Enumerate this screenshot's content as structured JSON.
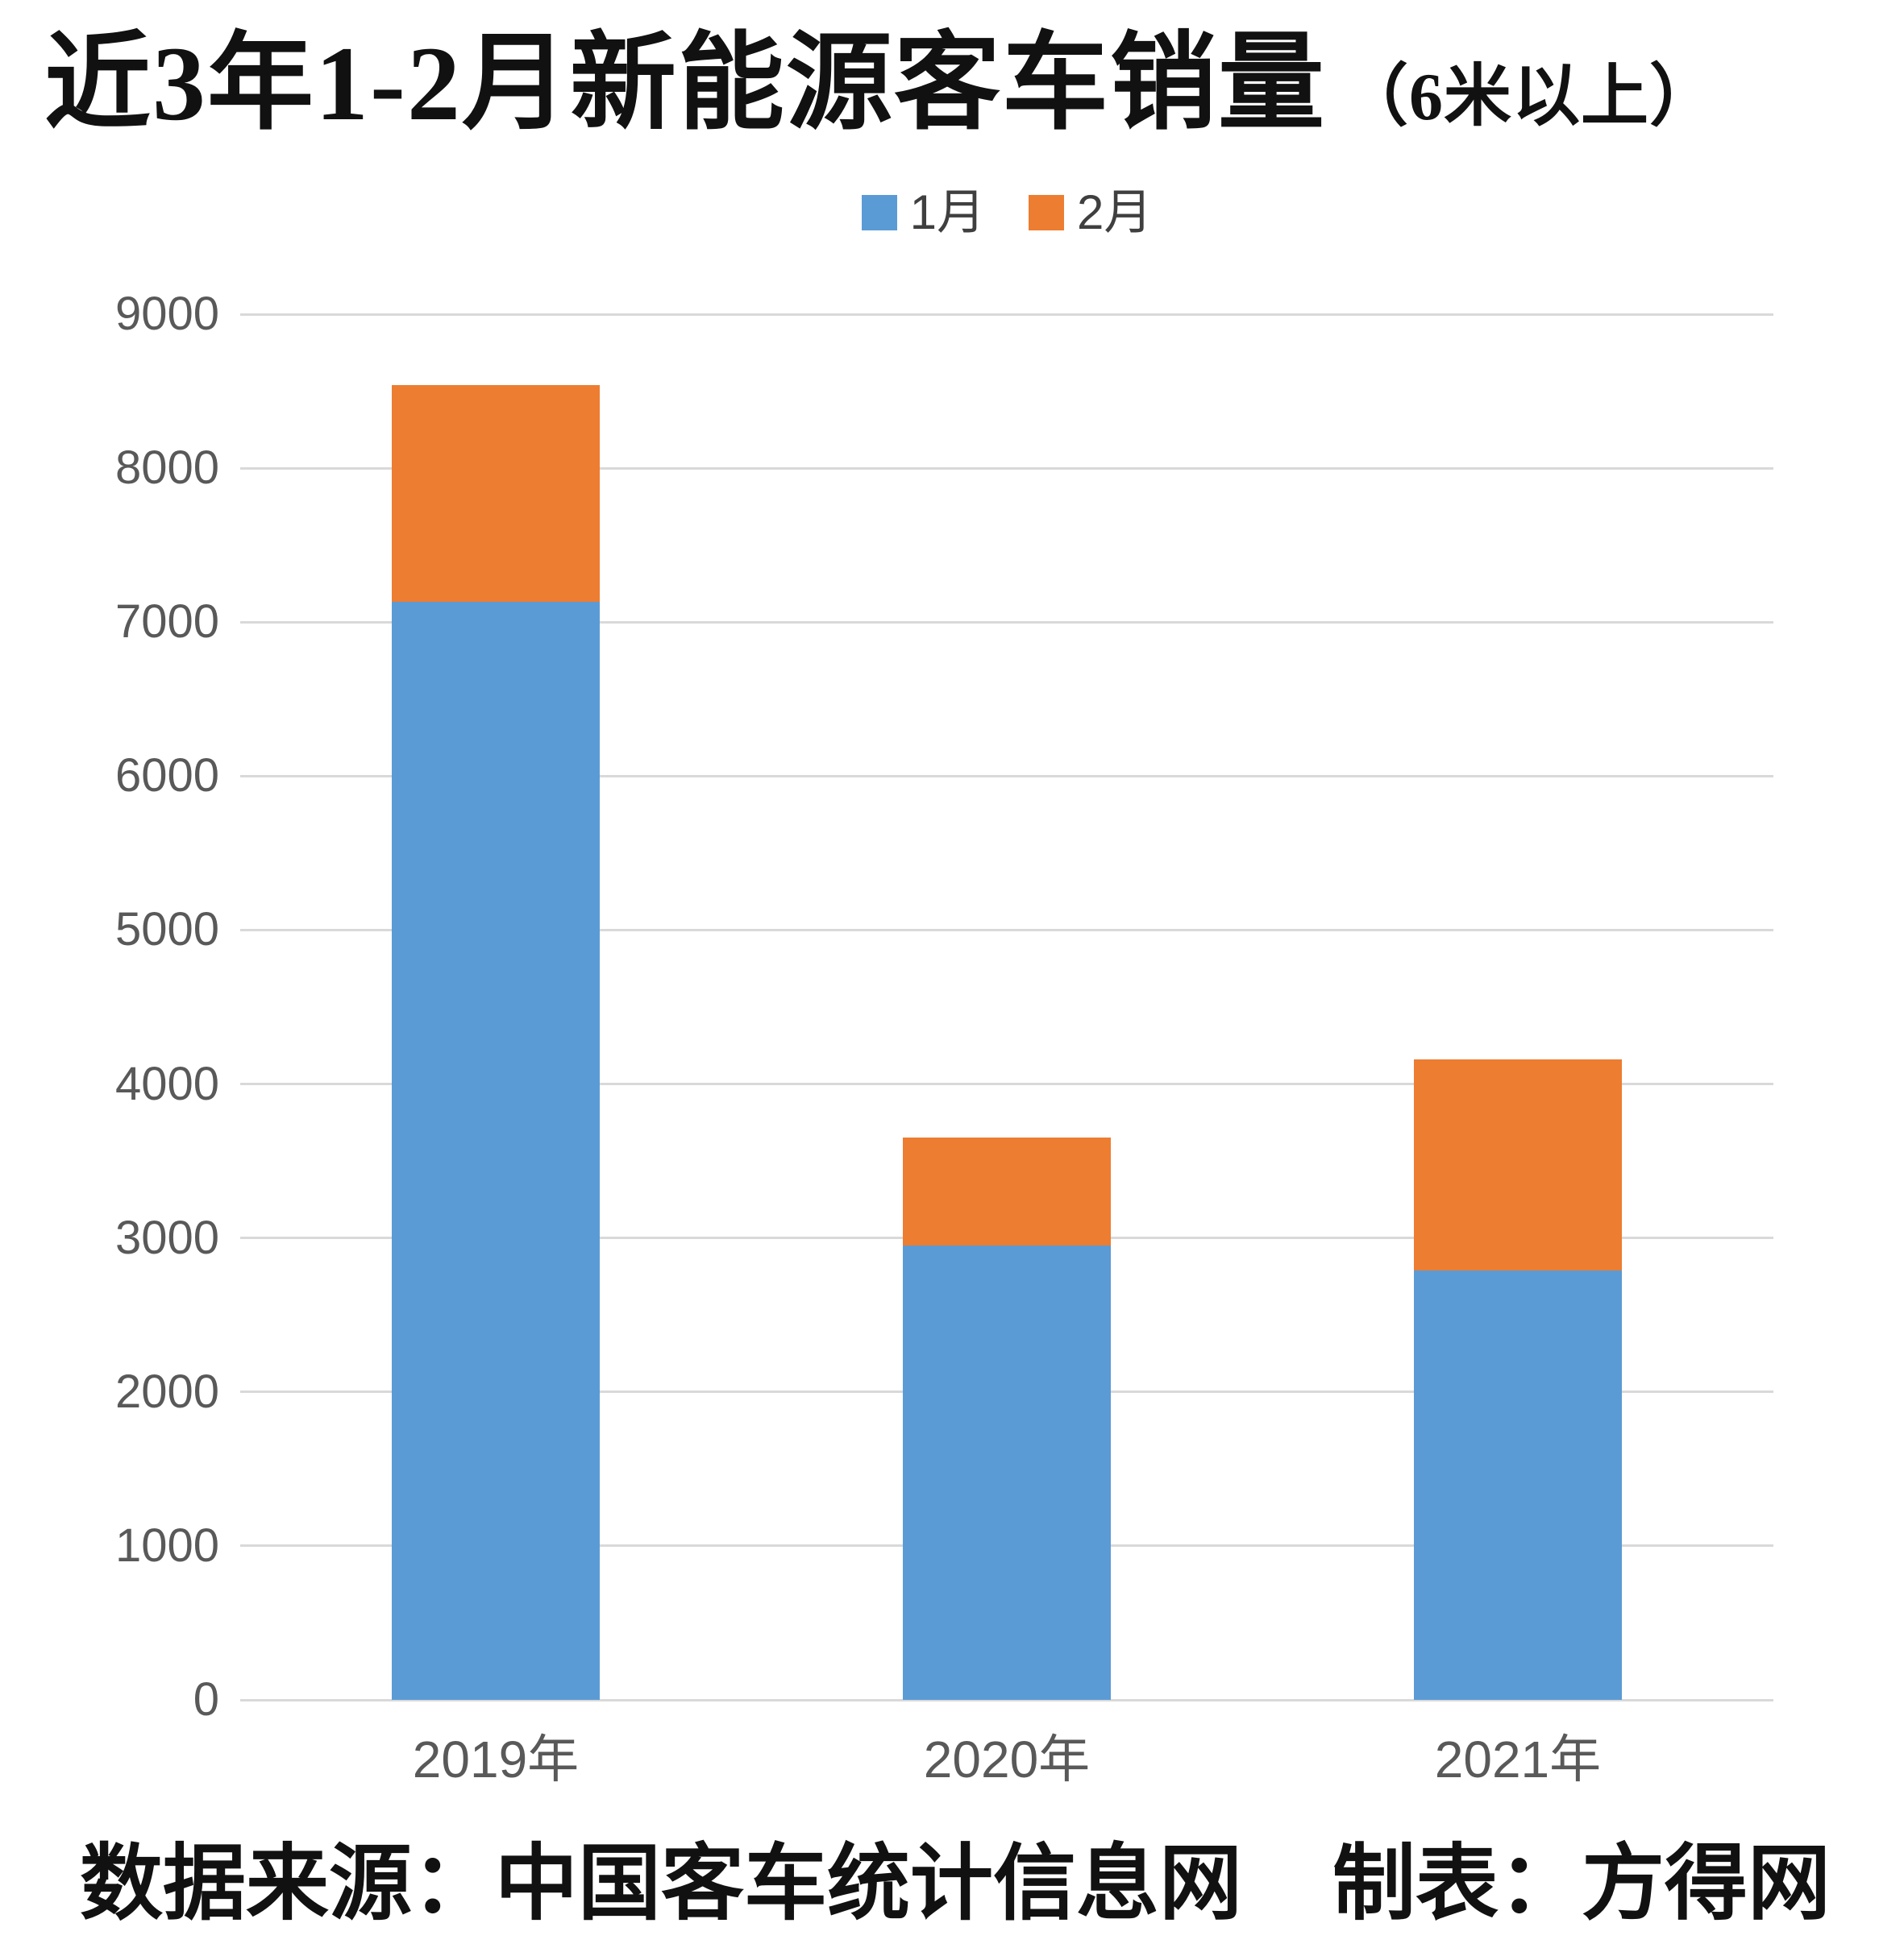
{
  "title": {
    "main": "近3年1-2月新能源客车销量",
    "suffix": "（6米以上）"
  },
  "footer": {
    "source": "数据来源：中国客车统计信息网",
    "credit": "制表：方得网"
  },
  "chart_data": {
    "type": "bar",
    "stacked": true,
    "title": "近3年1-2月新能源客车销量（6米以上）",
    "categories": [
      "2019年",
      "2020年",
      "2021年"
    ],
    "series": [
      {
        "name": "1月",
        "color": "#5b9bd5",
        "values": [
          7130,
          2950,
          2790
        ]
      },
      {
        "name": "2月",
        "color": "#ed7d31",
        "values": [
          1410,
          700,
          1370
        ]
      }
    ],
    "stack_totals": [
      8540,
      3650,
      4160
    ],
    "xlabel": "",
    "ylabel": "",
    "ylim": [
      0,
      9000
    ],
    "ytick_interval": 1000,
    "ytick_labels": [
      "0",
      "1000",
      "2000",
      "3000",
      "4000",
      "5000",
      "6000",
      "7000",
      "8000",
      "9000"
    ],
    "grid": true,
    "legend_position": "top-center",
    "colors": {
      "gridline": "#d9d9d9",
      "axis_label_text": "#595959",
      "legend_text": "#3f3f3f",
      "background": "#ffffff"
    }
  }
}
